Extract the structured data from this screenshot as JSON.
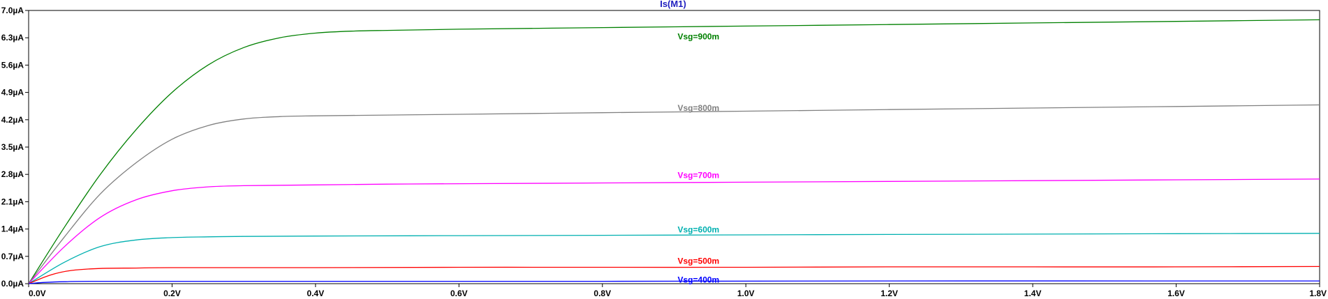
{
  "chart_data": {
    "type": "line",
    "title": "Is(M1)",
    "title_color": "#1f1fbf",
    "xlabel": "",
    "ylabel": "",
    "xlim": [
      0,
      1.8
    ],
    "ylim": [
      0,
      7.0
    ],
    "grid": false,
    "x_ticks": [
      0,
      0.2,
      0.4,
      0.6,
      0.8,
      1.0,
      1.2,
      1.4,
      1.6,
      1.8
    ],
    "x_tick_labels": [
      "0.0V",
      "0.2V",
      "0.4V",
      "0.6V",
      "0.8V",
      "1.0V",
      "1.2V",
      "1.4V",
      "1.6V",
      "1.8V"
    ],
    "y_ticks": [
      0,
      0.7,
      1.4,
      2.1,
      2.8,
      3.5,
      4.2,
      4.9,
      5.6,
      6.3,
      7.0
    ],
    "y_tick_labels": [
      "0.0µA",
      "0.7µA",
      "1.4µA",
      "2.1µA",
      "2.8µA",
      "3.5µA",
      "4.2µA",
      "4.9µA",
      "5.6µA",
      "6.3µA",
      "7.0µA"
    ],
    "series": [
      {
        "name": "Vsg=900m",
        "color": "#008000",
        "label_x": 0.9,
        "label_y": 6.33,
        "x": [
          0,
          0.05,
          0.1,
          0.15,
          0.2,
          0.25,
          0.3,
          0.35,
          0.4,
          0.45,
          0.5,
          0.6,
          0.8,
          1.0,
          1.2,
          1.4,
          1.6,
          1.8
        ],
        "y": [
          0,
          1.45,
          2.8,
          3.95,
          4.9,
          5.6,
          6.05,
          6.3,
          6.42,
          6.47,
          6.49,
          6.52,
          6.56,
          6.6,
          6.64,
          6.68,
          6.72,
          6.76
        ]
      },
      {
        "name": "Vsg=800m",
        "color": "#808080",
        "label_x": 0.9,
        "label_y": 4.5,
        "x": [
          0,
          0.05,
          0.1,
          0.15,
          0.2,
          0.25,
          0.3,
          0.35,
          0.4,
          0.5,
          0.6,
          0.8,
          1.0,
          1.2,
          1.4,
          1.6,
          1.8
        ],
        "y": [
          0,
          1.2,
          2.3,
          3.1,
          3.7,
          4.05,
          4.22,
          4.28,
          4.3,
          4.32,
          4.34,
          4.38,
          4.42,
          4.46,
          4.5,
          4.54,
          4.58
        ]
      },
      {
        "name": "Vsg=700m",
        "color": "#ff00ff",
        "label_x": 0.9,
        "label_y": 2.78,
        "x": [
          0,
          0.05,
          0.1,
          0.15,
          0.2,
          0.25,
          0.3,
          0.4,
          0.5,
          0.6,
          0.8,
          1.0,
          1.2,
          1.4,
          1.6,
          1.8
        ],
        "y": [
          0,
          0.95,
          1.7,
          2.15,
          2.38,
          2.48,
          2.51,
          2.53,
          2.55,
          2.56,
          2.58,
          2.6,
          2.62,
          2.64,
          2.66,
          2.68
        ]
      },
      {
        "name": "Vsg=600m",
        "color": "#00b0b0",
        "label_x": 0.9,
        "label_y": 1.38,
        "x": [
          0,
          0.05,
          0.1,
          0.15,
          0.2,
          0.25,
          0.3,
          0.4,
          0.6,
          0.8,
          1.0,
          1.2,
          1.4,
          1.6,
          1.8
        ],
        "y": [
          0,
          0.55,
          0.95,
          1.12,
          1.18,
          1.2,
          1.21,
          1.22,
          1.23,
          1.24,
          1.25,
          1.26,
          1.27,
          1.28,
          1.29
        ]
      },
      {
        "name": "Vsg=500m",
        "color": "#ff0000",
        "label_x": 0.9,
        "label_y": 0.58,
        "x": [
          0,
          0.03,
          0.06,
          0.1,
          0.15,
          0.2,
          0.4,
          0.6,
          0.8,
          1.0,
          1.2,
          1.4,
          1.6,
          1.8
        ],
        "y": [
          0,
          0.22,
          0.34,
          0.39,
          0.4,
          0.41,
          0.41,
          0.42,
          0.42,
          0.42,
          0.43,
          0.43,
          0.43,
          0.44
        ]
      },
      {
        "name": "Vsg=400m",
        "color": "#0000ff",
        "label_x": 0.9,
        "label_y": 0.1,
        "x": [
          0,
          0.02,
          0.05,
          0.1,
          0.4,
          0.8,
          1.2,
          1.6,
          1.8
        ],
        "y": [
          0,
          0.03,
          0.05,
          0.06,
          0.06,
          0.06,
          0.07,
          0.07,
          0.07
        ]
      }
    ]
  }
}
